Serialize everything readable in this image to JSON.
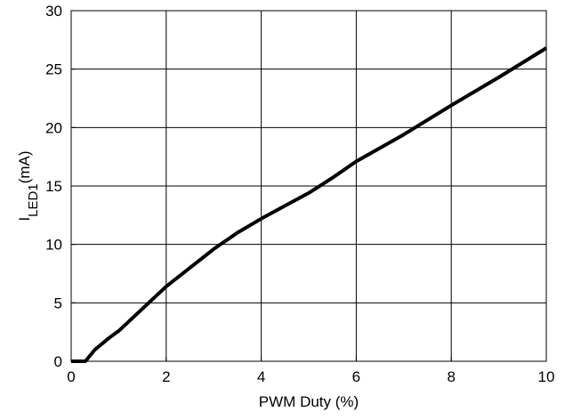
{
  "chart_data": {
    "type": "line",
    "title": "",
    "xlabel": "PWM Duty (%)",
    "ylabel": {
      "main": "I",
      "subscript": "LED1",
      "unit": "(mA)"
    },
    "xlim": [
      0,
      10
    ],
    "ylim": [
      0,
      30
    ],
    "xticks": [
      "0",
      "2",
      "4",
      "6",
      "8",
      "10"
    ],
    "yticks": [
      "0",
      "5",
      "10",
      "15",
      "20",
      "25",
      "30"
    ],
    "grid": true,
    "legend": "none",
    "line_color": "#000000",
    "series": [
      {
        "name": "",
        "x": [
          0.0,
          0.1,
          0.3,
          0.5,
          0.8,
          1.0,
          1.5,
          2.0,
          2.5,
          3.0,
          3.5,
          4.0,
          4.5,
          5.0,
          5.5,
          6.0,
          7.0,
          8.0,
          9.0,
          10.0
        ],
        "y": [
          0.0,
          0.0,
          0.0,
          1.0,
          2.0,
          2.6,
          4.5,
          6.4,
          8.0,
          9.6,
          11.0,
          12.2,
          13.3,
          14.4,
          15.7,
          17.1,
          19.4,
          21.9,
          24.3,
          26.8
        ]
      }
    ]
  }
}
